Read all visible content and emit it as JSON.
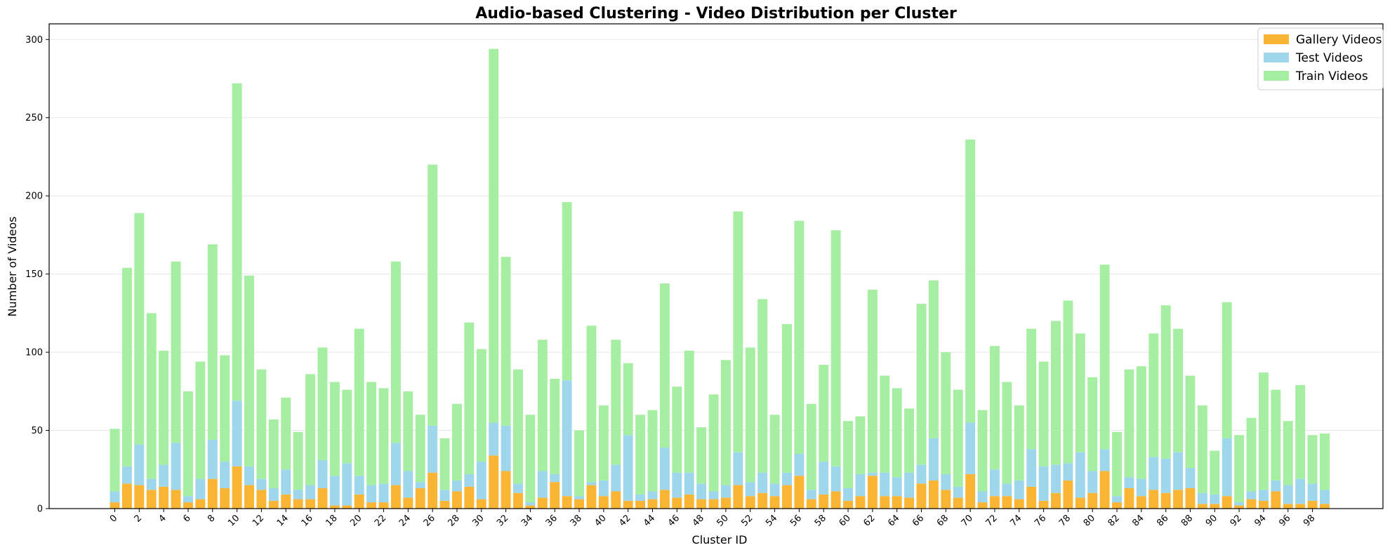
{
  "chart_data": {
    "type": "bar",
    "stacked": true,
    "title": "Audio-based Clustering - Video Distribution per Cluster",
    "xlabel": "Cluster ID",
    "ylabel": "Number of Videos",
    "ylim": [
      0,
      310
    ],
    "yticks": [
      0,
      50,
      100,
      150,
      200,
      250,
      300
    ],
    "xtick_step": 2,
    "grid": "horizontal",
    "legend_position": "top-right",
    "categories": [
      "0",
      "1",
      "2",
      "3",
      "4",
      "5",
      "6",
      "7",
      "8",
      "9",
      "10",
      "11",
      "12",
      "13",
      "14",
      "15",
      "16",
      "17",
      "18",
      "19",
      "20",
      "21",
      "22",
      "23",
      "24",
      "25",
      "26",
      "27",
      "28",
      "29",
      "30",
      "31",
      "32",
      "33",
      "34",
      "35",
      "36",
      "37",
      "38",
      "39",
      "40",
      "41",
      "42",
      "43",
      "44",
      "45",
      "46",
      "47",
      "48",
      "49",
      "50",
      "51",
      "52",
      "53",
      "54",
      "55",
      "56",
      "57",
      "58",
      "59",
      "60",
      "61",
      "62",
      "63",
      "64",
      "65",
      "66",
      "67",
      "68",
      "69",
      "70",
      "71",
      "72",
      "73",
      "74",
      "75",
      "76",
      "77",
      "78",
      "79",
      "80",
      "81",
      "82",
      "83",
      "84",
      "85",
      "86",
      "87",
      "88",
      "89",
      "90",
      "91",
      "92",
      "93",
      "94",
      "95",
      "96",
      "97",
      "98",
      "99"
    ],
    "series": [
      {
        "name": "Gallery Videos",
        "color": "#fbb535",
        "values": [
          4,
          16,
          15,
          12,
          14,
          12,
          4,
          6,
          19,
          13,
          27,
          15,
          12,
          5,
          9,
          6,
          6,
          13,
          2,
          2,
          9,
          4,
          4,
          15,
          7,
          13,
          23,
          5,
          11,
          14,
          6,
          34,
          24,
          10,
          2,
          7,
          17,
          8,
          6,
          15,
          8,
          11,
          5,
          5,
          6,
          12,
          7,
          9,
          6,
          6,
          7,
          15,
          8,
          10,
          8,
          15,
          21,
          6,
          9,
          11,
          5,
          8,
          21,
          8,
          8,
          7,
          16,
          18,
          12,
          7,
          22,
          4,
          8,
          8,
          6,
          14,
          5,
          10,
          18,
          7,
          10,
          24,
          4,
          13,
          8,
          12,
          10,
          12,
          13,
          3,
          3,
          8,
          2,
          6,
          5,
          11,
          3,
          3,
          5,
          3
        ]
      },
      {
        "name": "Test Videos",
        "color": "#9ed6ec",
        "values": [
          7,
          11,
          26,
          7,
          14,
          30,
          4,
          13,
          25,
          17,
          42,
          12,
          7,
          8,
          16,
          6,
          9,
          18,
          19,
          27,
          12,
          11,
          12,
          27,
          17,
          4,
          30,
          7,
          7,
          8,
          24,
          21,
          29,
          6,
          2,
          17,
          5,
          74,
          2,
          2,
          10,
          17,
          42,
          4,
          5,
          27,
          16,
          14,
          10,
          5,
          8,
          21,
          9,
          13,
          8,
          8,
          14,
          6,
          21,
          16,
          8,
          14,
          2,
          15,
          12,
          16,
          12,
          27,
          10,
          7,
          33,
          7,
          17,
          8,
          12,
          24,
          22,
          18,
          11,
          29,
          14,
          14,
          4,
          7,
          11,
          21,
          22,
          24,
          13,
          7,
          6,
          37,
          2,
          5,
          7,
          7,
          12,
          16,
          11,
          9
        ]
      },
      {
        "name": "Train Videos",
        "color": "#a6eea1",
        "values": [
          40,
          127,
          148,
          106,
          73,
          116,
          67,
          75,
          125,
          68,
          203,
          122,
          70,
          44,
          46,
          37,
          71,
          72,
          60,
          47,
          94,
          66,
          61,
          116,
          51,
          43,
          167,
          33,
          49,
          97,
          72,
          239,
          108,
          73,
          56,
          84,
          61,
          114,
          42,
          100,
          48,
          80,
          46,
          51,
          52,
          105,
          55,
          78,
          36,
          62,
          80,
          154,
          86,
          111,
          44,
          95,
          149,
          55,
          62,
          151,
          43,
          37,
          117,
          62,
          57,
          41,
          103,
          101,
          78,
          62,
          181,
          52,
          79,
          65,
          48,
          77,
          67,
          92,
          104,
          76,
          60,
          118,
          41,
          69,
          72,
          79,
          98,
          79,
          59,
          56,
          28,
          87,
          43,
          47,
          75,
          58,
          41,
          60,
          31,
          36
        ]
      }
    ]
  }
}
